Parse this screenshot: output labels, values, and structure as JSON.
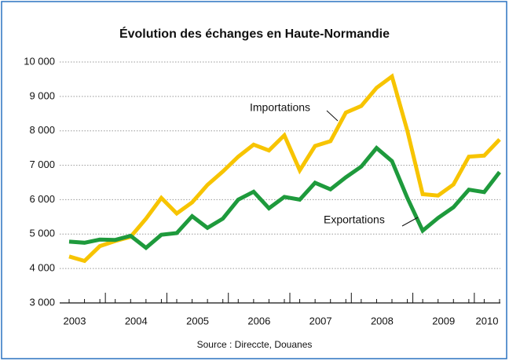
{
  "chart_data": {
    "type": "line",
    "title": "Évolution des échanges en Haute-Normandie",
    "source": "Source : Direccte, Douanes",
    "categories": [
      "2003",
      null,
      null,
      null,
      "2004",
      null,
      null,
      null,
      "2005",
      null,
      null,
      null,
      "2006",
      null,
      null,
      null,
      "2007",
      null,
      null,
      null,
      "2008",
      null,
      null,
      null,
      "2009",
      null,
      null,
      null,
      "2010"
    ],
    "series": [
      {
        "name": "Importations",
        "color": "#f7c400",
        "values": [
          4350,
          4220,
          4650,
          4800,
          4920,
          5450,
          6050,
          5600,
          5920,
          6430,
          6820,
          7250,
          7600,
          7430,
          7870,
          6850,
          7560,
          7700,
          8530,
          8720,
          9250,
          9580,
          8000,
          6160,
          6120,
          6440,
          7250,
          7280,
          7750
        ]
      },
      {
        "name": "Exportations",
        "color": "#1e9a3c",
        "values": [
          4780,
          4750,
          4840,
          4830,
          4950,
          4600,
          4980,
          5030,
          5520,
          5180,
          5450,
          6000,
          6230,
          5750,
          6080,
          6000,
          6490,
          6300,
          6650,
          6960,
          7500,
          7120,
          6050,
          5100,
          5470,
          5780,
          6290,
          6220,
          6800
        ]
      }
    ],
    "ylim": [
      3000,
      10000
    ],
    "yticks": [
      {
        "value": 3000,
        "label": "3 000"
      },
      {
        "value": 4000,
        "label": "4 000"
      },
      {
        "value": 5000,
        "label": "5 000"
      },
      {
        "value": 6000,
        "label": "6 000"
      },
      {
        "value": 7000,
        "label": "7 000"
      },
      {
        "value": 8000,
        "label": "8 000"
      },
      {
        "value": 9000,
        "label": "9 000"
      },
      {
        "value": 10000,
        "label": "10 000"
      }
    ],
    "grid": true
  }
}
